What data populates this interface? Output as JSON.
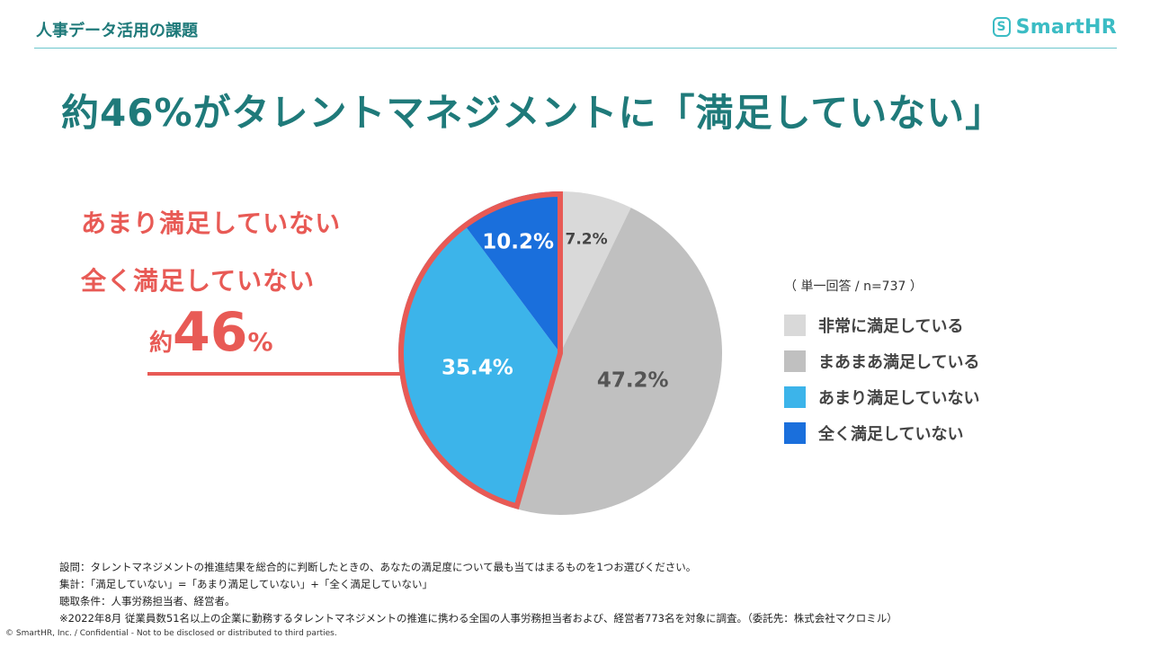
{
  "header": {
    "title": "人事データ活用の課題",
    "logo_mark": "S",
    "logo_text": "SmartHR",
    "logo_icon": "smarthr-logo-icon"
  },
  "headline": "約46%がタレントマネジメントに「満足していない」",
  "callout": {
    "line1": "あまり満足していない",
    "line2": "全く満足していない",
    "total_prefix": "約",
    "total_number": "46",
    "total_unit": "%"
  },
  "legend": {
    "note": "（ 単一回答 / n=737 ）"
  },
  "chart_data": {
    "type": "pie",
    "slices": [
      {
        "label": "非常に満足している",
        "value": 7.2,
        "display": "7.2%",
        "color": "#d9d9d9",
        "text_color": "#444444"
      },
      {
        "label": "まあまあ満足している",
        "value": 47.2,
        "display": "47.2%",
        "color": "#c0c0c0",
        "text_color": "#555555"
      },
      {
        "label": "あまり満足していない",
        "value": 35.4,
        "display": "35.4%",
        "color": "#3cb4ea",
        "text_color": "#ffffff"
      },
      {
        "label": "全く満足していない",
        "value": 10.2,
        "display": "10.2%",
        "color": "#1a6fdc",
        "text_color": "#ffffff"
      }
    ],
    "highlight_color": "#e85a55"
  },
  "notes": [
    "設問：タレントマネジメントの推進結果を総合的に判断したときの、あなたの満足度について最も当てはまるものを1つお選びください。",
    "集計：「満足していない」=「あまり満足していない」+「全く満足していない」",
    "聴取条件：人事労務担当者、経営者。",
    "※2022年8月 従業員数51名以上の企業に勤務するタレントマネジメントの推進に携わる全国の人事労務担当者および、経営者773名を対象に調査。（委託先：株式会社マクロミル）"
  ],
  "footer": "© SmartHR, Inc. / Confidential - Not to be disclosed or distributed to third parties."
}
